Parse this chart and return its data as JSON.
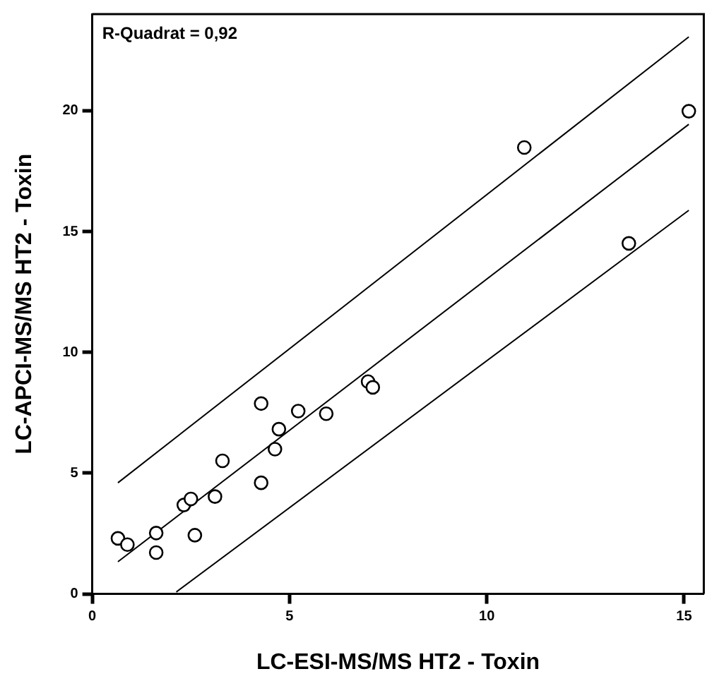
{
  "chart_data": {
    "type": "scatter",
    "xlabel": "LC-ESI-MS/MS HT2 - Toxin",
    "ylabel": "LC-APCI-MS/MS HT2 - Toxin",
    "annotations": [
      "R-Quadrat = 0,92"
    ],
    "xlim": [
      0,
      15.5
    ],
    "ylim": [
      0,
      24
    ],
    "xticks": [
      0,
      5,
      10,
      15
    ],
    "yticks": [
      0,
      5,
      10,
      15,
      20
    ],
    "grid": false,
    "legend": false,
    "series": [
      {
        "type": "scatter",
        "marker": "circle",
        "color": "#000000",
        "x": [
          0.65,
          0.89,
          1.62,
          1.62,
          2.32,
          2.5,
          2.6,
          3.11,
          3.3,
          4.28,
          4.28,
          4.63,
          4.73,
          5.22,
          5.93,
          6.99,
          7.11,
          10.95,
          13.6,
          15.12
        ],
        "values": [
          2.3,
          2.04,
          2.52,
          1.71,
          3.68,
          3.93,
          2.43,
          4.03,
          5.51,
          4.6,
          7.88,
          5.99,
          6.82,
          7.57,
          7.46,
          8.79,
          8.55,
          18.48,
          14.51,
          19.98
        ]
      },
      {
        "type": "line",
        "marker": "none",
        "line_style": "solid",
        "color": "#000000",
        "x": [
          0.65,
          15.12
        ],
        "values": [
          1.33,
          19.44
        ]
      },
      {
        "type": "line",
        "marker": "none",
        "line_style": "solid",
        "color": "#000000",
        "x": [
          0.65,
          15.12
        ],
        "values": [
          4.6,
          23.06
        ]
      },
      {
        "type": "line",
        "marker": "none",
        "line_style": "solid",
        "color": "#000000",
        "x": [
          2.13,
          15.12
        ],
        "values": [
          0.08,
          15.88
        ]
      }
    ]
  }
}
